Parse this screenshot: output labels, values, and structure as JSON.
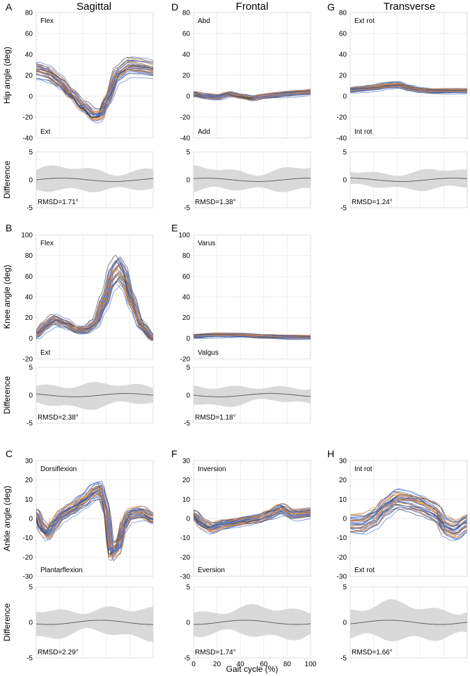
{
  "figure": {
    "column_titles": [
      "Sagittal",
      "Frontal",
      "Transverse"
    ],
    "xlabel": "Gait cycle (%)",
    "diff_ylabel": "Difference",
    "x_ticks": [
      0,
      20,
      40,
      60,
      80,
      100
    ]
  },
  "colors": {
    "blue": "#4f72c4",
    "orange": "#e0893c",
    "dark": "#3a3f4a",
    "band": "#d9d9d9",
    "mean": "#555555"
  },
  "chart_data": [
    {
      "type": "line",
      "panel": "A",
      "plane": "Sagittal",
      "joint": "Hip",
      "ylabel": "Hip angle (deg)",
      "ylim": [
        -40,
        80
      ],
      "yticks": [
        -40,
        -20,
        0,
        20,
        40,
        60,
        80
      ],
      "label_top": "Flex",
      "label_bottom": "Ext",
      "xlim": [
        0,
        100
      ],
      "mean_curve": {
        "x": [
          0,
          10,
          20,
          30,
          40,
          50,
          55,
          60,
          70,
          80,
          90,
          100
        ],
        "y": [
          25,
          22,
          14,
          2,
          -10,
          -19,
          -18,
          -5,
          22,
          29,
          28,
          26
        ]
      },
      "band": 8,
      "n_trials": 36,
      "difference": {
        "ylim": [
          -5,
          5
        ],
        "yticks": [
          -5,
          0,
          5
        ],
        "rmsd": "RMSD=1.71°",
        "band": 2.5
      }
    },
    {
      "type": "line",
      "panel": "D",
      "plane": "Frontal",
      "joint": "Hip",
      "ylabel": "",
      "ylim": [
        -40,
        80
      ],
      "yticks": [
        -40,
        -20,
        0,
        20,
        40,
        60,
        80
      ],
      "label_top": "Abd",
      "label_bottom": "Add",
      "xlim": [
        0,
        100
      ],
      "mean_curve": {
        "x": [
          0,
          10,
          20,
          30,
          40,
          50,
          60,
          70,
          80,
          90,
          100
        ],
        "y": [
          2,
          0,
          -1,
          2,
          0,
          -2,
          0,
          1,
          2,
          3,
          4
        ]
      },
      "band": 4,
      "n_trials": 36,
      "difference": {
        "ylim": [
          -5,
          5
        ],
        "yticks": [
          -5,
          0,
          5
        ],
        "rmsd": "RMSD=1.38°",
        "band": 2.5
      }
    },
    {
      "type": "line",
      "panel": "G",
      "plane": "Transverse",
      "joint": "Hip",
      "ylabel": "",
      "ylim": [
        -40,
        80
      ],
      "yticks": [
        -40,
        -20,
        0,
        20,
        40,
        60,
        80
      ],
      "label_top": "Ext rot",
      "label_bottom": "Int rot",
      "xlim": [
        0,
        100
      ],
      "mean_curve": {
        "x": [
          0,
          10,
          20,
          30,
          40,
          50,
          60,
          70,
          80,
          90,
          100
        ],
        "y": [
          6,
          7,
          8,
          10,
          11,
          8,
          6,
          5,
          5,
          5,
          5
        ]
      },
      "band": 3,
      "n_trials": 36,
      "difference": {
        "ylim": [
          -5,
          5
        ],
        "yticks": [
          -5,
          0,
          5
        ],
        "rmsd": "RMSD=1.24°",
        "band": 2
      }
    },
    {
      "type": "line",
      "panel": "B",
      "plane": "Sagittal",
      "joint": "Knee",
      "ylabel": "Knee angle (deg)",
      "ylim": [
        -20,
        100
      ],
      "yticks": [
        -20,
        0,
        20,
        40,
        60,
        80,
        100
      ],
      "label_top": "Flex",
      "label_bottom": "Ext",
      "xlim": [
        0,
        100
      ],
      "mean_curve": {
        "x": [
          0,
          8,
          15,
          25,
          35,
          42,
          50,
          58,
          65,
          70,
          75,
          82,
          90,
          100
        ],
        "y": [
          3,
          12,
          18,
          14,
          8,
          8,
          14,
          35,
          60,
          67,
          60,
          35,
          12,
          0
        ]
      },
      "band": 5,
      "n_trials": 36,
      "difference": {
        "ylim": [
          -5,
          5
        ],
        "yticks": [
          -5,
          0,
          5
        ],
        "rmsd": "RMSD=2.38°",
        "band": 2.5
      }
    },
    {
      "type": "line",
      "panel": "E",
      "plane": "Frontal",
      "joint": "Knee",
      "ylabel": "",
      "ylim": [
        -20,
        100
      ],
      "yticks": [
        -20,
        0,
        20,
        40,
        60,
        80,
        100
      ],
      "label_top": "Varus",
      "label_bottom": "Valgus",
      "xlim": [
        0,
        100
      ],
      "mean_curve": {
        "x": [
          0,
          20,
          40,
          60,
          80,
          100
        ],
        "y": [
          2,
          3,
          3,
          2,
          1,
          1
        ]
      },
      "band": 3,
      "n_trials": 36,
      "difference": {
        "ylim": [
          -5,
          5
        ],
        "yticks": [
          -5,
          0,
          5
        ],
        "rmsd": "RMSD=1.18°",
        "band": 2
      }
    },
    {
      "type": "line",
      "panel": "C",
      "plane": "Sagittal",
      "joint": "Ankle",
      "ylabel": "Ankle angle (deg)",
      "ylim": [
        -30,
        30
      ],
      "yticks": [
        -30,
        -20,
        -10,
        0,
        10,
        20,
        30
      ],
      "label_top": "Dorsiflexion",
      "label_bottom": "Plantarflexion",
      "xlim": [
        0,
        100
      ],
      "mean_curve": {
        "x": [
          0,
          5,
          10,
          15,
          22,
          30,
          40,
          50,
          55,
          60,
          64,
          70,
          75,
          80,
          90,
          100
        ],
        "y": [
          2,
          -5,
          -8,
          -3,
          2,
          5,
          9,
          14,
          15,
          5,
          -18,
          -15,
          -3,
          2,
          3,
          0
        ]
      },
      "band": 5,
      "n_trials": 36,
      "difference": {
        "ylim": [
          -5,
          5
        ],
        "yticks": [
          -5,
          0,
          5
        ],
        "rmsd": "RMSD=2.29°",
        "band": 2.5
      }
    },
    {
      "type": "line",
      "panel": "F",
      "plane": "Frontal",
      "joint": "Ankle",
      "ylabel": "",
      "ylim": [
        -30,
        30
      ],
      "yticks": [
        -30,
        -20,
        -10,
        0,
        10,
        20,
        30
      ],
      "label_top": "Inversion",
      "label_bottom": "Eversion",
      "xlim": [
        0,
        100
      ],
      "mean_curve": {
        "x": [
          0,
          8,
          15,
          25,
          35,
          45,
          55,
          65,
          75,
          85,
          100
        ],
        "y": [
          2,
          -3,
          -5,
          -3,
          -2,
          -1,
          0,
          2,
          5,
          2,
          3
        ]
      },
      "band": 4,
      "n_trials": 36,
      "difference": {
        "ylim": [
          -5,
          5
        ],
        "yticks": [
          -5,
          0,
          5
        ],
        "rmsd": "RMSD=1.74°",
        "band": 2.5
      }
    },
    {
      "type": "line",
      "panel": "H",
      "plane": "Transverse",
      "joint": "Ankle",
      "ylabel": "",
      "ylim": [
        -30,
        30
      ],
      "yticks": [
        -30,
        -20,
        -10,
        0,
        10,
        20,
        30
      ],
      "label_top": "Int rot",
      "label_bottom": "Ext rot",
      "xlim": [
        0,
        100
      ],
      "mean_curve": {
        "x": [
          0,
          10,
          20,
          30,
          40,
          50,
          60,
          70,
          75,
          80,
          90,
          100
        ],
        "y": [
          -3,
          -3,
          0,
          6,
          10,
          9,
          7,
          4,
          2,
          -4,
          -6,
          -2
        ]
      },
      "band": 8,
      "n_trials": 36,
      "difference": {
        "ylim": [
          -5,
          5
        ],
        "yticks": [
          -5,
          0,
          5
        ],
        "rmsd": "RMSD=1.66°",
        "band": 3
      }
    }
  ]
}
